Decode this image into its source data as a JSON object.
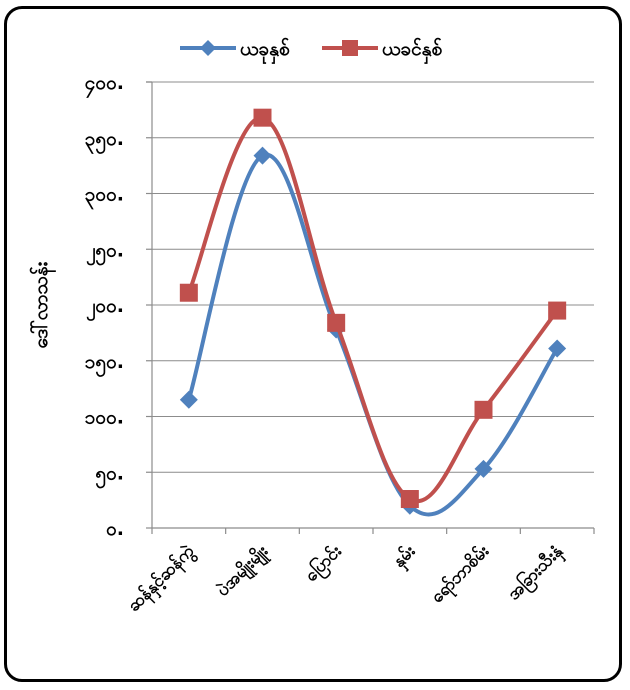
{
  "chart_data": {
    "type": "line",
    "smooth": true,
    "title": "",
    "xlabel": "",
    "ylabel": "ဒေါ်လာသန်း",
    "ylim": [
      0,
      400
    ],
    "yticks": [
      0,
      50,
      100,
      150,
      200,
      250,
      300,
      350,
      400
    ],
    "ytick_labels": [
      "၀.",
      "၅၀.",
      "၁၀၀.",
      "၁၅၀.",
      "၂၀၀.",
      "၂၅၀.",
      "၃၀၀.",
      "၃၅၀.",
      "၄၀၀."
    ],
    "grid": true,
    "legend_position": "top",
    "categories": [
      "ဆန်နှင့်ဆန်ကွဲ",
      "ပဲအမျိုးမျိုး",
      "ပြောင်း",
      "နှမ်း",
      "ရော်ဘာစိမ်း",
      "အခြားသီးနှံ"
    ],
    "series": [
      {
        "name": "ယခုနှစ်",
        "color": "#4f81bd",
        "marker": "diamond",
        "values": [
          115,
          334,
          178,
          20,
          53,
          161
        ]
      },
      {
        "name": "ယခင်နှစ်",
        "color": "#c0504d",
        "marker": "square",
        "values": [
          211,
          368,
          184,
          26,
          106,
          195
        ]
      }
    ]
  }
}
